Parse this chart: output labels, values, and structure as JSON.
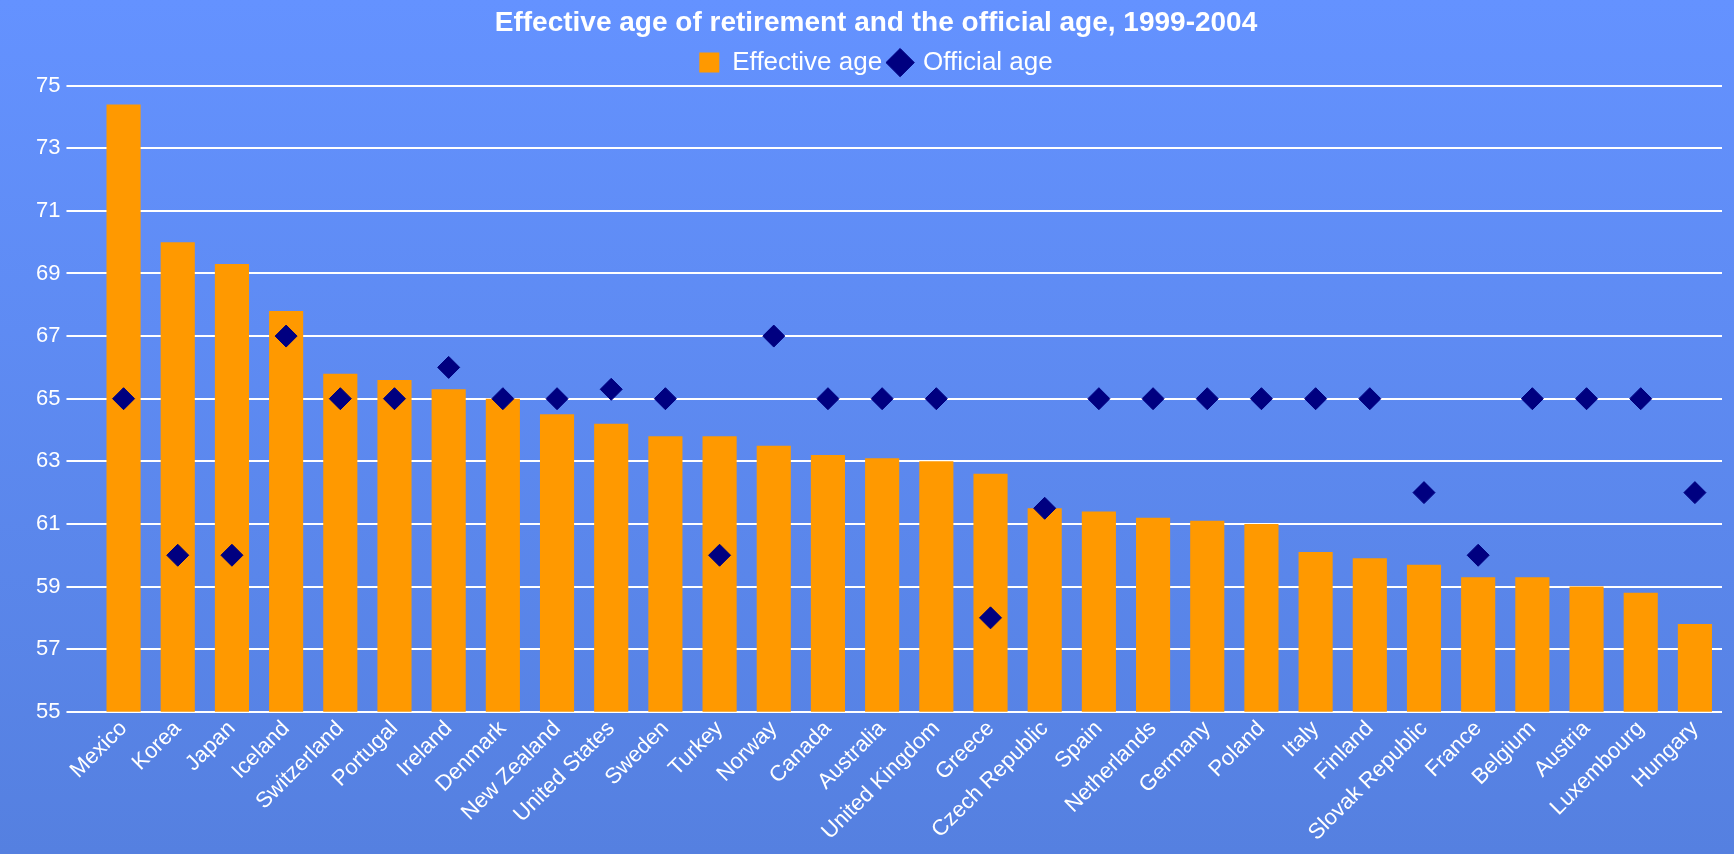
{
  "chart_data": {
    "type": "bar",
    "title": "Effective age of retirement and the official age, 1999-2004",
    "categories": [
      "Mexico",
      "Korea",
      "Japan",
      "Iceland",
      "Switzerland",
      "Portugal",
      "Ireland",
      "Denmark",
      "New Zealand",
      "United States",
      "Sweden",
      "Turkey",
      "Norway",
      "Canada",
      "Australia",
      "United Kingdom",
      "Greece",
      "Czech Republic",
      "Spain",
      "Netherlands",
      "Germany",
      "Poland",
      "Italy",
      "Finland",
      "Slovak Republic",
      "France",
      "Belgium",
      "Austria",
      "Luxembourg",
      "Hungary"
    ],
    "series": [
      {
        "name": "Effective age",
        "type": "bar",
        "color": "#ff9900",
        "values": [
          74.4,
          70.0,
          69.3,
          67.8,
          65.8,
          65.6,
          65.3,
          65.0,
          64.5,
          64.2,
          63.8,
          63.8,
          63.5,
          63.2,
          63.1,
          63.0,
          62.6,
          61.5,
          61.4,
          61.2,
          61.1,
          61.0,
          60.1,
          59.9,
          59.7,
          59.3,
          59.3,
          59.0,
          58.8,
          57.8
        ]
      },
      {
        "name": "Official age",
        "type": "scatter",
        "color": "#000080",
        "marker": "diamond",
        "values": [
          65,
          60,
          60,
          67,
          65,
          65,
          66,
          65,
          65,
          65.3,
          65,
          60,
          67,
          65,
          65,
          65,
          58,
          61.5,
          65,
          65,
          65,
          65,
          65,
          65,
          62,
          60,
          65,
          65,
          65,
          62
        ]
      }
    ],
    "ylim": [
      55,
      75
    ],
    "yticks": [
      55,
      57,
      59,
      61,
      63,
      65,
      67,
      69,
      71,
      73,
      75
    ],
    "grid": "y",
    "legend": "top"
  }
}
